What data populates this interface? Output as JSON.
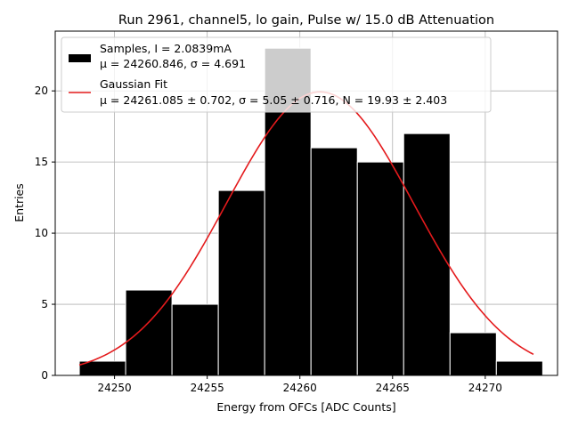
{
  "chart_data": {
    "type": "bar",
    "title": "Run 2961, channel5, lo gain, Pulse w/ 15.0 dB Attenuation",
    "xlabel": "Energy from OFCs [ADC Counts]",
    "ylabel": "Entries",
    "xlim": [
      24246.8,
      24273.9
    ],
    "ylim": [
      0,
      24.2
    ],
    "grid": true,
    "legend_position": "top-left",
    "x_ticks": [
      "24250",
      "24255",
      "24260",
      "24265",
      "24270"
    ],
    "y_ticks": [
      "0",
      "5",
      "10",
      "15",
      "20"
    ],
    "bin_edges": [
      24248.1,
      24253.1,
      24258.1,
      24263.1,
      24268.1,
      24273.1
    ],
    "histogram": {
      "legend_line1": "Samples, I = 2.0839mA",
      "legend_line2": "μ = 24260.846, σ = 4.691",
      "color": "#000000",
      "bins": [
        {
          "x0": 24248.1,
          "x1": 24250.6,
          "count": 1
        },
        {
          "x0": 24250.6,
          "x1": 24253.1,
          "count": 6
        },
        {
          "x0": 24253.1,
          "x1": 24255.6,
          "count": 5
        },
        {
          "x0": 24255.6,
          "x1": 24258.1,
          "count": 13
        },
        {
          "x0": 24258.1,
          "x1": 24260.6,
          "count": 23
        },
        {
          "x0": 24260.6,
          "x1": 24263.1,
          "count": 16
        },
        {
          "x0": 24263.1,
          "x1": 24265.6,
          "count": 15
        },
        {
          "x0": 24265.6,
          "x1": 24268.1,
          "count": 17
        },
        {
          "x0": 24268.1,
          "x1": 24270.6,
          "count": 3
        },
        {
          "x0": 24270.6,
          "x1": 24273.1,
          "count": 1
        }
      ]
    },
    "fit": {
      "legend_line1": "Gaussian Fit",
      "legend_line2": "μ = 24261.085 ± 0.702, σ = 5.05 ± 0.716, N = 19.93 ± 2.403",
      "color": "#e41a1c",
      "mu": 24261.085,
      "sigma": 5.05,
      "amplitude": 19.93,
      "x_range": [
        24248.1,
        24272.6
      ]
    }
  }
}
